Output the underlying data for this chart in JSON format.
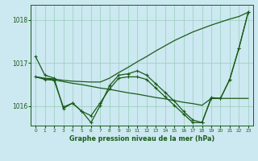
{
  "title": "Graphe pression niveau de la mer (hPa)",
  "background_color": "#cce8f0",
  "grid_color": "#99ccbb",
  "line_color": "#1a5c1a",
  "xlim": [
    -0.5,
    23.5
  ],
  "ylim": [
    1015.55,
    1018.35
  ],
  "yticks": [
    1016,
    1017,
    1018
  ],
  "xticks": [
    0,
    1,
    2,
    3,
    4,
    5,
    6,
    7,
    8,
    9,
    10,
    11,
    12,
    13,
    14,
    15,
    16,
    17,
    18,
    19,
    20,
    21,
    22,
    23
  ],
  "series_with_markers": [
    [
      1017.15,
      1016.72,
      1016.65,
      1015.95,
      1016.07,
      1015.88,
      1015.62,
      1016.02,
      1016.48,
      1016.72,
      1016.75,
      1016.82,
      1016.72,
      1016.52,
      1016.32,
      1016.12,
      1015.88,
      1015.68,
      1015.62,
      1016.2,
      1016.18,
      1016.62,
      1017.35,
      1018.18
    ],
    [
      1016.68,
      1016.62,
      1016.6,
      1015.98,
      1016.07,
      1015.88,
      1015.78,
      1016.08,
      1016.4,
      1016.65,
      1016.68,
      1016.68,
      1016.62,
      1016.42,
      1016.22,
      1016.02,
      1015.82,
      1015.62,
      1015.62,
      1016.18,
      1016.18,
      1016.62,
      1017.35,
      1018.18
    ]
  ],
  "series_smooth": [
    [
      1016.68,
      1016.64,
      1016.61,
      1016.57,
      1016.53,
      1016.5,
      1016.46,
      1016.42,
      1016.39,
      1016.35,
      1016.31,
      1016.28,
      1016.24,
      1016.2,
      1016.17,
      1016.13,
      1016.09,
      1016.06,
      1016.02,
      1016.18,
      1016.18,
      1016.18,
      1016.18,
      1016.18
    ],
    [
      1016.68,
      1016.65,
      1016.63,
      1016.6,
      1016.58,
      1016.57,
      1016.56,
      1016.56,
      1016.65,
      1016.78,
      1016.9,
      1017.03,
      1017.15,
      1017.28,
      1017.4,
      1017.52,
      1017.62,
      1017.72,
      1017.8,
      1017.88,
      1017.95,
      1018.02,
      1018.08,
      1018.18
    ]
  ]
}
